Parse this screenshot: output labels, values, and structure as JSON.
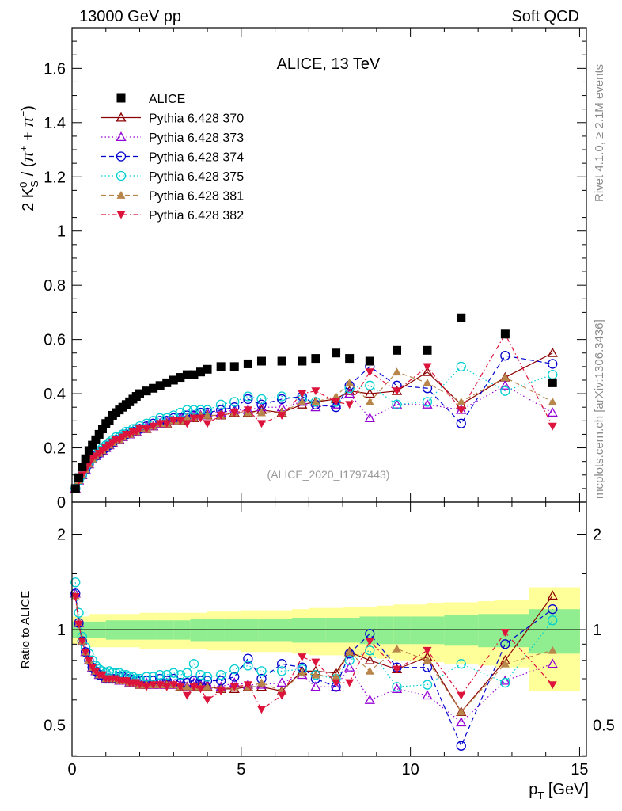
{
  "header": {
    "left": "13000 GeV pp",
    "right": "Soft QCD"
  },
  "side_labels": {
    "rivet": "Rivet 4.1.0, ≥ 2.1M events",
    "mcplots": "mcplots.cern.ch [arXiv:1306.3436]"
  },
  "chart_data": [
    {
      "type": "scatter",
      "title": "ALICE, 13 TeV",
      "watermark": "(ALICE_2020_I1797443)",
      "xlabel": "p_T [GeV]",
      "ylabel": "2 K0S / (π+ + π−)",
      "xlim": [
        0,
        15.2
      ],
      "ylim": [
        0,
        1.75
      ],
      "yticks": [
        0,
        0.2,
        0.4,
        0.6,
        0.8,
        1,
        1.2,
        1.4,
        1.6
      ],
      "ytick_labels": [
        "0",
        "0.2",
        "0.4",
        "0.6",
        "0.8",
        "1",
        "1.2",
        "1.4",
        "1.6"
      ],
      "legend_position": "top-left",
      "x": [
        0.1,
        0.2,
        0.3,
        0.4,
        0.5,
        0.6,
        0.7,
        0.8,
        0.9,
        1.0,
        1.1,
        1.2,
        1.3,
        1.4,
        1.5,
        1.6,
        1.7,
        1.8,
        1.9,
        2.0,
        2.2,
        2.4,
        2.6,
        2.8,
        3.0,
        3.2,
        3.4,
        3.6,
        3.8,
        4.0,
        4.4,
        4.8,
        5.2,
        5.6,
        6.2,
        6.8,
        7.2,
        7.8,
        8.2,
        8.8,
        9.6,
        10.5,
        11.5,
        12.8,
        14.2
      ],
      "series": [
        {
          "name": "ALICE",
          "color": "#000000",
          "marker": "square-filled",
          "line": "none",
          "values": [
            0.05,
            0.09,
            0.13,
            0.16,
            0.19,
            0.21,
            0.23,
            0.25,
            0.27,
            0.29,
            0.3,
            0.32,
            0.33,
            0.34,
            0.35,
            0.36,
            0.37,
            0.38,
            0.39,
            0.4,
            0.41,
            0.42,
            0.43,
            0.44,
            0.45,
            0.46,
            0.47,
            0.47,
            0.48,
            0.49,
            0.5,
            0.5,
            0.51,
            0.52,
            0.52,
            0.52,
            0.53,
            0.55,
            0.53,
            0.52,
            0.56,
            0.56,
            0.68,
            0.62,
            0.44
          ]
        },
        {
          "name": "Pythia 6.428 370",
          "color": "#8b0000",
          "marker": "triangle-open",
          "line": "solid",
          "values": [
            0.05,
            0.08,
            0.1,
            0.12,
            0.14,
            0.16,
            0.17,
            0.18,
            0.19,
            0.2,
            0.21,
            0.22,
            0.23,
            0.23,
            0.24,
            0.25,
            0.25,
            0.26,
            0.26,
            0.27,
            0.27,
            0.28,
            0.29,
            0.29,
            0.3,
            0.3,
            0.31,
            0.31,
            0.32,
            0.32,
            0.32,
            0.33,
            0.33,
            0.34,
            0.33,
            0.36,
            0.37,
            0.38,
            0.41,
            0.4,
            0.41,
            0.48,
            0.36,
            0.46,
            0.55
          ]
        },
        {
          "name": "Pythia 6.428 373",
          "color": "#9400d3",
          "marker": "triangle-open",
          "line": "dotted",
          "values": [
            0.05,
            0.08,
            0.1,
            0.12,
            0.14,
            0.16,
            0.17,
            0.18,
            0.19,
            0.2,
            0.21,
            0.22,
            0.23,
            0.23,
            0.24,
            0.25,
            0.25,
            0.26,
            0.26,
            0.27,
            0.28,
            0.28,
            0.29,
            0.3,
            0.3,
            0.31,
            0.31,
            0.32,
            0.32,
            0.33,
            0.33,
            0.34,
            0.34,
            0.35,
            0.35,
            0.37,
            0.35,
            0.36,
            0.4,
            0.31,
            0.36,
            0.36,
            0.34,
            0.43,
            0.33
          ]
        },
        {
          "name": "Pythia 6.428 374",
          "color": "#0000cd",
          "marker": "circle-open",
          "line": "dashed",
          "values": [
            0.05,
            0.08,
            0.1,
            0.12,
            0.14,
            0.16,
            0.17,
            0.18,
            0.19,
            0.2,
            0.21,
            0.22,
            0.23,
            0.24,
            0.25,
            0.25,
            0.26,
            0.26,
            0.27,
            0.27,
            0.28,
            0.29,
            0.3,
            0.3,
            0.31,
            0.31,
            0.32,
            0.32,
            0.33,
            0.33,
            0.34,
            0.35,
            0.38,
            0.36,
            0.38,
            0.39,
            0.36,
            0.35,
            0.43,
            0.5,
            0.43,
            0.42,
            0.29,
            0.54,
            0.51
          ]
        },
        {
          "name": "Pythia 6.428 375",
          "color": "#00ced1",
          "marker": "circle-open",
          "line": "dotted",
          "values": [
            0.05,
            0.08,
            0.1,
            0.13,
            0.15,
            0.16,
            0.18,
            0.19,
            0.2,
            0.21,
            0.22,
            0.23,
            0.24,
            0.24,
            0.25,
            0.26,
            0.26,
            0.27,
            0.27,
            0.28,
            0.29,
            0.3,
            0.31,
            0.31,
            0.32,
            0.33,
            0.34,
            0.34,
            0.34,
            0.34,
            0.36,
            0.37,
            0.39,
            0.38,
            0.39,
            0.38,
            0.37,
            0.37,
            0.42,
            0.43,
            0.36,
            0.37,
            0.5,
            0.41,
            0.47
          ]
        },
        {
          "name": "Pythia 6.428 381",
          "color": "#b8864b",
          "marker": "triangle-filled",
          "line": "dashed",
          "values": [
            0.05,
            0.08,
            0.1,
            0.12,
            0.14,
            0.16,
            0.17,
            0.18,
            0.19,
            0.2,
            0.21,
            0.22,
            0.23,
            0.23,
            0.24,
            0.25,
            0.25,
            0.26,
            0.26,
            0.27,
            0.27,
            0.28,
            0.29,
            0.29,
            0.3,
            0.3,
            0.31,
            0.31,
            0.32,
            0.32,
            0.32,
            0.33,
            0.33,
            0.33,
            0.33,
            0.37,
            0.37,
            0.39,
            0.44,
            0.37,
            0.48,
            0.44,
            0.37,
            0.46,
            0.37
          ]
        },
        {
          "name": "Pythia 6.428 382",
          "color": "#dc143c",
          "marker": "triangle-down-filled",
          "line": "dashdot",
          "values": [
            0.05,
            0.08,
            0.1,
            0.12,
            0.14,
            0.16,
            0.17,
            0.18,
            0.19,
            0.2,
            0.21,
            0.22,
            0.23,
            0.23,
            0.24,
            0.25,
            0.25,
            0.26,
            0.26,
            0.27,
            0.27,
            0.28,
            0.29,
            0.29,
            0.3,
            0.3,
            0.29,
            0.31,
            0.31,
            0.29,
            0.32,
            0.33,
            0.34,
            0.29,
            0.32,
            0.4,
            0.41,
            0.37,
            0.36,
            0.48,
            0.41,
            0.5,
            0.34,
            0.62,
            0.28
          ]
        }
      ]
    },
    {
      "type": "scatter",
      "title": "",
      "xlabel": "p_T [GeV]",
      "ylabel": "Ratio to ALICE",
      "xlim": [
        0,
        15.2
      ],
      "ylim": [
        0.34,
        2.34
      ],
      "yticks": [
        0.5,
        1,
        2
      ],
      "ytick_labels": [
        "0.5",
        "1",
        "2"
      ],
      "xticks": [
        0,
        5,
        10,
        15
      ],
      "xtick_labels": [
        "0",
        "5",
        "10",
        "15"
      ],
      "bands": {
        "x_edges": [
          0.0,
          0.5,
          1.0,
          1.5,
          2.0,
          2.5,
          3.0,
          3.5,
          4.0,
          4.5,
          5.0,
          5.5,
          6.0,
          6.5,
          7.0,
          7.5,
          8.0,
          8.5,
          9.0,
          9.5,
          10.0,
          10.5,
          11.0,
          11.5,
          12.0,
          12.5,
          13.5,
          15.0
        ],
        "stat_halfwidth": [
          0.06,
          0.06,
          0.07,
          0.07,
          0.07,
          0.07,
          0.07,
          0.08,
          0.08,
          0.08,
          0.08,
          0.08,
          0.08,
          0.09,
          0.09,
          0.09,
          0.09,
          0.1,
          0.1,
          0.1,
          0.1,
          0.1,
          0.11,
          0.11,
          0.12,
          0.12,
          0.16
        ],
        "syst_halfwidth": [
          0.1,
          0.12,
          0.12,
          0.12,
          0.13,
          0.13,
          0.13,
          0.13,
          0.14,
          0.14,
          0.15,
          0.15,
          0.15,
          0.16,
          0.17,
          0.17,
          0.18,
          0.18,
          0.19,
          0.2,
          0.2,
          0.21,
          0.22,
          0.22,
          0.23,
          0.24,
          0.36
        ],
        "stat_color": "#90ee90",
        "syst_color": "#ffff99"
      },
      "series": [
        {
          "name": "Pythia 6.428 370",
          "values": [
            1.3,
            1.05,
            0.92,
            0.85,
            0.8,
            0.76,
            0.74,
            0.72,
            0.72,
            0.7,
            0.7,
            0.7,
            0.7,
            0.69,
            0.69,
            0.69,
            0.68,
            0.68,
            0.68,
            0.67,
            0.67,
            0.67,
            0.67,
            0.67,
            0.67,
            0.66,
            0.66,
            0.66,
            0.66,
            0.66,
            0.65,
            0.65,
            0.66,
            0.66,
            0.64,
            0.74,
            0.74,
            0.73,
            0.85,
            0.8,
            0.75,
            0.82,
            0.55,
            0.8,
            1.28
          ]
        },
        {
          "name": "Pythia 6.428 373",
          "values": [
            1.3,
            1.05,
            0.92,
            0.85,
            0.8,
            0.76,
            0.74,
            0.72,
            0.72,
            0.7,
            0.7,
            0.7,
            0.7,
            0.69,
            0.69,
            0.69,
            0.68,
            0.68,
            0.68,
            0.68,
            0.68,
            0.67,
            0.67,
            0.68,
            0.67,
            0.67,
            0.66,
            0.68,
            0.67,
            0.67,
            0.66,
            0.68,
            0.67,
            0.67,
            0.68,
            0.72,
            0.66,
            0.66,
            0.76,
            0.6,
            0.65,
            0.62,
            0.51,
            0.69,
            0.78
          ]
        },
        {
          "name": "Pythia 6.428 374",
          "values": [
            1.3,
            1.05,
            0.92,
            0.85,
            0.8,
            0.76,
            0.74,
            0.72,
            0.72,
            0.7,
            0.7,
            0.7,
            0.7,
            0.71,
            0.71,
            0.7,
            0.7,
            0.69,
            0.69,
            0.69,
            0.69,
            0.69,
            0.7,
            0.69,
            0.7,
            0.68,
            0.68,
            0.69,
            0.69,
            0.69,
            0.69,
            0.71,
            0.81,
            0.7,
            0.78,
            0.76,
            0.7,
            0.66,
            0.84,
            0.97,
            0.76,
            0.76,
            0.43,
            0.9,
            1.16
          ]
        },
        {
          "name": "Pythia 6.428 375",
          "values": [
            1.41,
            1.13,
            0.95,
            0.88,
            0.84,
            0.8,
            0.77,
            0.75,
            0.74,
            0.73,
            0.74,
            0.73,
            0.73,
            0.73,
            0.72,
            0.72,
            0.71,
            0.71,
            0.7,
            0.7,
            0.71,
            0.71,
            0.72,
            0.72,
            0.73,
            0.72,
            0.73,
            0.78,
            0.72,
            0.71,
            0.72,
            0.75,
            0.77,
            0.74,
            0.74,
            0.75,
            0.72,
            0.7,
            0.8,
            0.86,
            0.66,
            0.67,
            0.78,
            0.68,
            1.07
          ]
        },
        {
          "name": "Pythia 6.428 381",
          "values": [
            1.28,
            1.05,
            0.92,
            0.85,
            0.8,
            0.76,
            0.74,
            0.72,
            0.72,
            0.7,
            0.7,
            0.7,
            0.7,
            0.69,
            0.69,
            0.69,
            0.68,
            0.68,
            0.68,
            0.67,
            0.67,
            0.67,
            0.67,
            0.67,
            0.67,
            0.66,
            0.66,
            0.66,
            0.66,
            0.66,
            0.65,
            0.66,
            0.66,
            0.68,
            0.64,
            0.73,
            0.72,
            0.71,
            0.85,
            0.74,
            0.87,
            0.8,
            0.55,
            0.78,
            0.86
          ]
        },
        {
          "name": "Pythia 6.428 382",
          "values": [
            1.27,
            1.04,
            0.92,
            0.85,
            0.8,
            0.76,
            0.74,
            0.72,
            0.72,
            0.7,
            0.7,
            0.7,
            0.7,
            0.69,
            0.69,
            0.69,
            0.68,
            0.68,
            0.68,
            0.67,
            0.66,
            0.67,
            0.67,
            0.66,
            0.67,
            0.66,
            0.62,
            0.66,
            0.65,
            0.6,
            0.64,
            0.66,
            0.67,
            0.56,
            0.62,
            0.82,
            0.79,
            0.68,
            0.68,
            0.92,
            0.75,
            0.86,
            0.62,
            0.98,
            0.67
          ]
        }
      ]
    }
  ]
}
